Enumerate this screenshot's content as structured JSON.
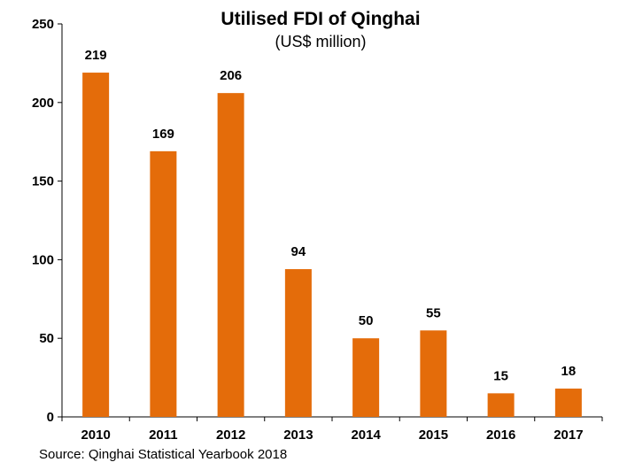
{
  "chart_data": {
    "type": "bar",
    "title": "Utilised FDI of Qinghai",
    "subtitle": "(US$ million)",
    "categories": [
      "2010",
      "2011",
      "2012",
      "2013",
      "2014",
      "2015",
      "2016",
      "2017"
    ],
    "values": [
      219,
      169,
      206,
      94,
      50,
      55,
      15,
      18
    ],
    "value_labels": [
      "219",
      "169",
      "206",
      "94",
      "50",
      "55",
      "15",
      "18"
    ],
    "yticks": [
      "0",
      "50",
      "100",
      "150",
      "200",
      "250"
    ],
    "ylim": [
      0,
      250
    ],
    "xlabel": "",
    "ylabel": "",
    "grid": false,
    "bar_color": "#E46C0A",
    "source": "Source: Qinghai Statistical Yearbook 2018"
  }
}
